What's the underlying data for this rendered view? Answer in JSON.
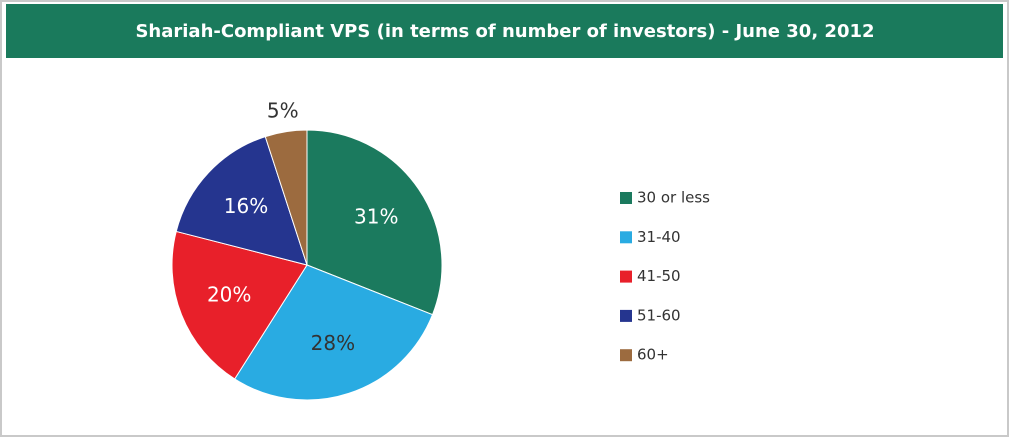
{
  "chart_data": {
    "type": "pie",
    "title": "Shariah-Compliant VPS (in terms of number of investors) - June 30, 2012",
    "categories": [
      "30 or less",
      "31-40",
      "41-50",
      "51-60",
      "60+"
    ],
    "values": [
      31,
      28,
      20,
      16,
      5
    ],
    "value_labels": [
      "31%",
      "28%",
      "20%",
      "16%",
      "5%"
    ],
    "colors": [
      "#1b7a5e",
      "#29abe2",
      "#e8202a",
      "#25358f",
      "#9c6b3f"
    ],
    "legend": "right"
  }
}
